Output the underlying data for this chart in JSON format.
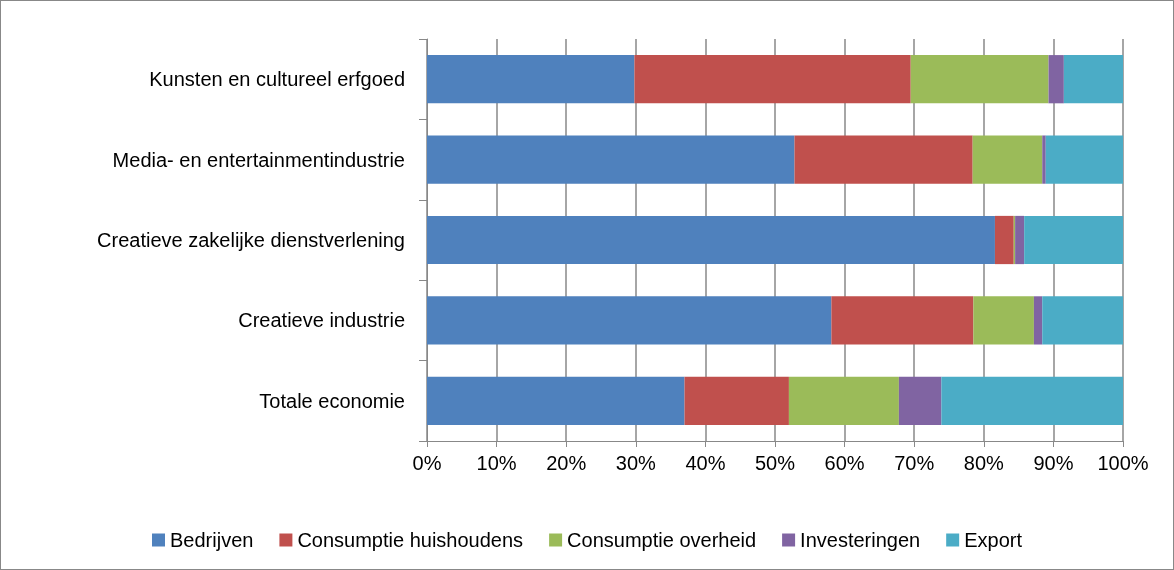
{
  "chart_data": {
    "type": "bar",
    "orientation": "horizontal",
    "stacked": true,
    "categories": [
      "Kunsten en cultureel erfgoed",
      "Media- en entertainmentindustrie",
      "Creatieve zakelijke dienstverlening",
      "Creatieve industrie",
      "Totale economie"
    ],
    "series": [
      {
        "name": "Bedrijven",
        "color": "#4f81bd",
        "values": [
          29.8,
          52.8,
          81.6,
          58.1,
          37.0
        ]
      },
      {
        "name": "Consumptie huishoudens",
        "color": "#c0504d",
        "values": [
          39.7,
          25.6,
          2.7,
          20.4,
          15.0
        ]
      },
      {
        "name": "Consumptie overheid",
        "color": "#9bbb59",
        "values": [
          19.8,
          10.0,
          0.2,
          8.7,
          15.8
        ]
      },
      {
        "name": "Investeringen",
        "color": "#8064a2",
        "values": [
          2.2,
          0.5,
          1.3,
          1.2,
          6.1
        ]
      },
      {
        "name": "Export",
        "color": "#4bacc6",
        "values": [
          8.5,
          11.1,
          14.2,
          11.6,
          26.1
        ]
      }
    ],
    "xlim": [
      0,
      100
    ],
    "xticks": [
      {
        "value": 0,
        "label": "0%"
      },
      {
        "value": 10,
        "label": "10%"
      },
      {
        "value": 20,
        "label": "20%"
      },
      {
        "value": 30,
        "label": "30%"
      },
      {
        "value": 40,
        "label": "40%"
      },
      {
        "value": 50,
        "label": "50%"
      },
      {
        "value": 60,
        "label": "60%"
      },
      {
        "value": 70,
        "label": "70%"
      },
      {
        "value": 80,
        "label": "80%"
      },
      {
        "value": 90,
        "label": "90%"
      },
      {
        "value": 100,
        "label": "100%"
      }
    ],
    "grid": "x",
    "legend": "bottom"
  }
}
